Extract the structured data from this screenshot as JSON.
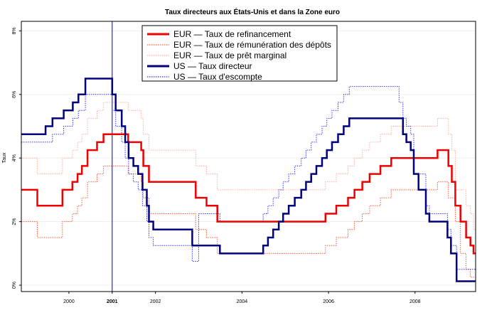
{
  "chart_data": {
    "type": "line",
    "title": "Taux directeurs aux États-Unis et dans la Zone euro",
    "xlabel": "",
    "ylabel": "Taux",
    "xlim": [
      1998.9,
      2009.4
    ],
    "ylim": [
      -0.2,
      8.3
    ],
    "x_ticks": [
      {
        "value": 2000,
        "label": "2000"
      },
      {
        "value": 2001,
        "label": "2001",
        "highlight": true
      },
      {
        "value": 2002,
        "label": "2002"
      },
      {
        "value": 2004,
        "label": "2004"
      },
      {
        "value": 2006,
        "label": "2006"
      },
      {
        "value": 2008,
        "label": "2008"
      }
    ],
    "y_ticks": [
      {
        "value": 0,
        "label": "0%"
      },
      {
        "value": 2,
        "label": "2%"
      },
      {
        "value": 4,
        "label": "4%"
      },
      {
        "value": 6,
        "label": "6%"
      },
      {
        "value": 8,
        "label": "8%"
      }
    ],
    "vertical_marker": {
      "x": 2001.0,
      "color": "#0000cc"
    },
    "legend_position": "top-center",
    "grid": true,
    "series": [
      {
        "name": "EUR — Taux de refinancement",
        "color": "#ee0000",
        "style": "solid",
        "width": 2.5,
        "points": [
          [
            1998.9,
            3.0
          ],
          [
            1999.27,
            2.5
          ],
          [
            1999.85,
            3.0
          ],
          [
            2000.08,
            3.25
          ],
          [
            2000.2,
            3.5
          ],
          [
            2000.3,
            3.75
          ],
          [
            2000.43,
            4.25
          ],
          [
            2000.65,
            4.5
          ],
          [
            2000.8,
            4.75
          ],
          [
            2001.37,
            4.5
          ],
          [
            2001.67,
            4.25
          ],
          [
            2001.72,
            3.75
          ],
          [
            2001.85,
            3.25
          ],
          [
            2002.93,
            2.75
          ],
          [
            2003.18,
            2.5
          ],
          [
            2003.43,
            2.0
          ],
          [
            2005.93,
            2.25
          ],
          [
            2006.18,
            2.5
          ],
          [
            2006.45,
            2.75
          ],
          [
            2006.6,
            3.0
          ],
          [
            2006.78,
            3.25
          ],
          [
            2006.95,
            3.5
          ],
          [
            2007.2,
            3.75
          ],
          [
            2007.45,
            4.0
          ],
          [
            2008.52,
            4.25
          ],
          [
            2008.77,
            3.75
          ],
          [
            2008.85,
            3.25
          ],
          [
            2008.93,
            2.5
          ],
          [
            2009.05,
            2.0
          ],
          [
            2009.18,
            1.5
          ],
          [
            2009.28,
            1.25
          ],
          [
            2009.35,
            1.0
          ],
          [
            2009.4,
            1.0
          ]
        ]
      },
      {
        "name": "EUR — Taux de rémunération des dépôts",
        "color": "#ff5533",
        "style": "dotted",
        "width": 1,
        "points": [
          [
            1998.9,
            2.0
          ],
          [
            1999.27,
            1.5
          ],
          [
            1999.85,
            2.0
          ],
          [
            2000.08,
            2.25
          ],
          [
            2000.2,
            2.5
          ],
          [
            2000.3,
            2.75
          ],
          [
            2000.43,
            3.25
          ],
          [
            2000.65,
            3.5
          ],
          [
            2000.8,
            3.75
          ],
          [
            2001.37,
            3.5
          ],
          [
            2001.67,
            3.25
          ],
          [
            2001.72,
            2.75
          ],
          [
            2001.85,
            2.25
          ],
          [
            2002.93,
            1.75
          ],
          [
            2003.18,
            1.5
          ],
          [
            2003.43,
            1.0
          ],
          [
            2005.93,
            1.25
          ],
          [
            2006.18,
            1.5
          ],
          [
            2006.45,
            1.75
          ],
          [
            2006.6,
            2.0
          ],
          [
            2006.78,
            2.25
          ],
          [
            2006.95,
            2.5
          ],
          [
            2007.2,
            2.75
          ],
          [
            2007.45,
            3.0
          ],
          [
            2008.52,
            3.25
          ],
          [
            2008.77,
            2.75
          ],
          [
            2008.85,
            2.75
          ],
          [
            2008.93,
            2.0
          ],
          [
            2009.05,
            1.0
          ],
          [
            2009.18,
            0.5
          ],
          [
            2009.28,
            0.25
          ],
          [
            2009.4,
            0.25
          ]
        ]
      },
      {
        "name": "EUR — Taux de  prêt marginal",
        "color": "#ffaa99",
        "style": "dotted",
        "width": 1,
        "points": [
          [
            1998.9,
            4.0
          ],
          [
            1999.27,
            3.5
          ],
          [
            1999.85,
            4.0
          ],
          [
            2000.08,
            4.25
          ],
          [
            2000.2,
            4.5
          ],
          [
            2000.3,
            4.75
          ],
          [
            2000.43,
            5.25
          ],
          [
            2000.65,
            5.5
          ],
          [
            2000.8,
            5.75
          ],
          [
            2001.37,
            5.5
          ],
          [
            2001.67,
            5.25
          ],
          [
            2001.72,
            4.75
          ],
          [
            2001.85,
            4.25
          ],
          [
            2002.93,
            3.75
          ],
          [
            2003.18,
            3.5
          ],
          [
            2003.43,
            3.0
          ],
          [
            2005.93,
            3.25
          ],
          [
            2006.18,
            3.5
          ],
          [
            2006.45,
            3.75
          ],
          [
            2006.6,
            4.0
          ],
          [
            2006.78,
            4.25
          ],
          [
            2006.95,
            4.5
          ],
          [
            2007.2,
            4.75
          ],
          [
            2007.45,
            5.0
          ],
          [
            2008.52,
            5.25
          ],
          [
            2008.77,
            4.75
          ],
          [
            2008.85,
            4.25
          ],
          [
            2008.93,
            3.0
          ],
          [
            2009.05,
            3.0
          ],
          [
            2009.18,
            2.5
          ],
          [
            2009.28,
            2.25
          ],
          [
            2009.35,
            1.75
          ],
          [
            2009.4,
            1.75
          ]
        ]
      },
      {
        "name": "US — Taux directeur",
        "color": "#00007f",
        "style": "solid",
        "width": 2.5,
        "points": [
          [
            1998.9,
            4.75
          ],
          [
            1999.46,
            5.0
          ],
          [
            1999.62,
            5.25
          ],
          [
            1999.88,
            5.5
          ],
          [
            2000.09,
            5.75
          ],
          [
            2000.22,
            6.0
          ],
          [
            2000.38,
            6.5
          ],
          [
            2001.0,
            6.0
          ],
          [
            2001.08,
            5.5
          ],
          [
            2001.22,
            5.0
          ],
          [
            2001.3,
            4.5
          ],
          [
            2001.38,
            4.0
          ],
          [
            2001.49,
            3.75
          ],
          [
            2001.6,
            3.5
          ],
          [
            2001.7,
            3.0
          ],
          [
            2001.8,
            2.5
          ],
          [
            2001.85,
            2.0
          ],
          [
            2001.95,
            1.75
          ],
          [
            2002.85,
            1.25
          ],
          [
            2003.49,
            1.0
          ],
          [
            2004.49,
            1.25
          ],
          [
            2004.6,
            1.5
          ],
          [
            2004.72,
            1.75
          ],
          [
            2004.85,
            2.0
          ],
          [
            2004.95,
            2.25
          ],
          [
            2005.08,
            2.5
          ],
          [
            2005.22,
            2.75
          ],
          [
            2005.37,
            3.0
          ],
          [
            2005.48,
            3.25
          ],
          [
            2005.6,
            3.5
          ],
          [
            2005.72,
            3.75
          ],
          [
            2005.85,
            4.0
          ],
          [
            2005.96,
            4.25
          ],
          [
            2006.08,
            4.5
          ],
          [
            2006.22,
            4.75
          ],
          [
            2006.35,
            5.0
          ],
          [
            2006.48,
            5.25
          ],
          [
            2007.72,
            4.75
          ],
          [
            2007.8,
            4.5
          ],
          [
            2007.9,
            4.25
          ],
          [
            2007.97,
            3.5
          ],
          [
            2008.08,
            3.0
          ],
          [
            2008.25,
            2.25
          ],
          [
            2008.33,
            2.0
          ],
          [
            2008.75,
            1.5
          ],
          [
            2008.83,
            1.0
          ],
          [
            2008.96,
            0.125
          ],
          [
            2009.4,
            0.125
          ]
        ]
      },
      {
        "name": "US — Taux d'escompte",
        "color": "#3333ff",
        "style": "dotted",
        "width": 1,
        "points": [
          [
            1998.9,
            4.5
          ],
          [
            1999.46,
            4.5
          ],
          [
            1999.62,
            4.75
          ],
          [
            1999.88,
            5.0
          ],
          [
            2000.09,
            5.25
          ],
          [
            2000.22,
            5.5
          ],
          [
            2000.38,
            6.0
          ],
          [
            2001.0,
            5.5
          ],
          [
            2001.08,
            5.0
          ],
          [
            2001.22,
            4.5
          ],
          [
            2001.3,
            4.0
          ],
          [
            2001.38,
            3.5
          ],
          [
            2001.49,
            3.25
          ],
          [
            2001.6,
            3.0
          ],
          [
            2001.7,
            2.5
          ],
          [
            2001.8,
            2.0
          ],
          [
            2001.85,
            1.5
          ],
          [
            2001.95,
            1.25
          ],
          [
            2002.85,
            0.75
          ],
          [
            2003.0,
            2.25
          ],
          [
            2003.49,
            2.0
          ],
          [
            2004.49,
            2.25
          ],
          [
            2004.6,
            2.5
          ],
          [
            2004.72,
            2.75
          ],
          [
            2004.85,
            3.0
          ],
          [
            2004.95,
            3.25
          ],
          [
            2005.08,
            3.5
          ],
          [
            2005.22,
            3.75
          ],
          [
            2005.37,
            4.0
          ],
          [
            2005.48,
            4.25
          ],
          [
            2005.6,
            4.5
          ],
          [
            2005.72,
            4.75
          ],
          [
            2005.85,
            5.0
          ],
          [
            2005.96,
            5.25
          ],
          [
            2006.08,
            5.5
          ],
          [
            2006.22,
            5.75
          ],
          [
            2006.35,
            6.0
          ],
          [
            2006.48,
            6.25
          ],
          [
            2007.63,
            5.75
          ],
          [
            2007.72,
            5.25
          ],
          [
            2007.8,
            5.0
          ],
          [
            2007.9,
            4.75
          ],
          [
            2007.97,
            3.5
          ],
          [
            2008.08,
            3.5
          ],
          [
            2008.25,
            2.5
          ],
          [
            2008.33,
            2.25
          ],
          [
            2008.75,
            1.75
          ],
          [
            2008.83,
            1.25
          ],
          [
            2008.96,
            0.5
          ],
          [
            2009.4,
            0.5
          ]
        ]
      }
    ]
  }
}
